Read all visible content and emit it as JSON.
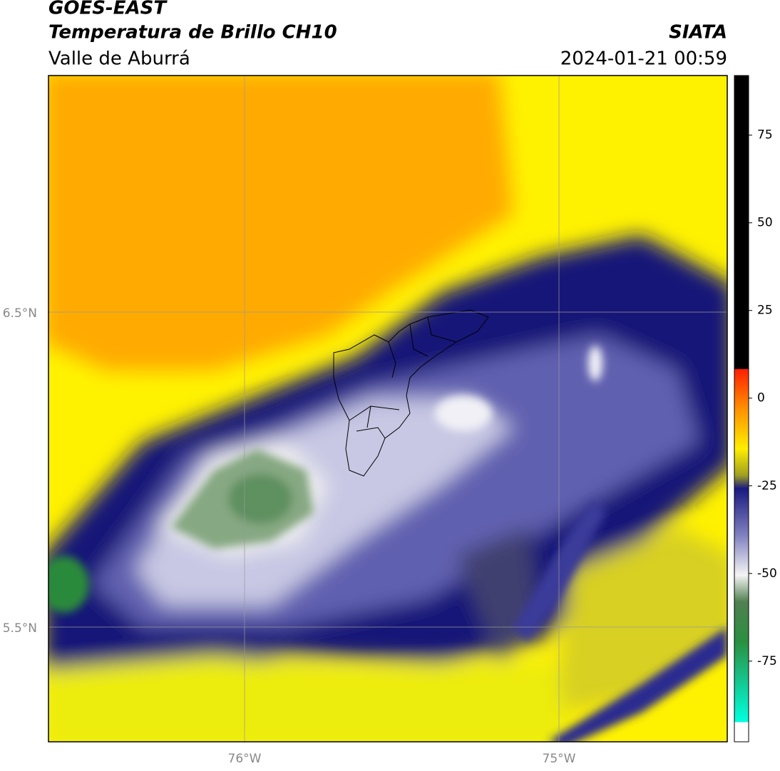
{
  "header": {
    "satellite": "GOES-EAST",
    "product": "Temperatura de Brillo CH10",
    "region": "Valle de Aburrá",
    "agency": "SIATA",
    "datetime": "2024-01-21 00:59"
  },
  "map": {
    "lat_labels": [
      "6.5°N",
      "5.5°N"
    ],
    "lon_labels": [
      "76°W",
      "75°W"
    ]
  },
  "colorbar": {
    "range": [
      -98,
      92
    ],
    "ticks": [
      75,
      50,
      25,
      0,
      -25,
      -50,
      -75
    ]
  }
}
